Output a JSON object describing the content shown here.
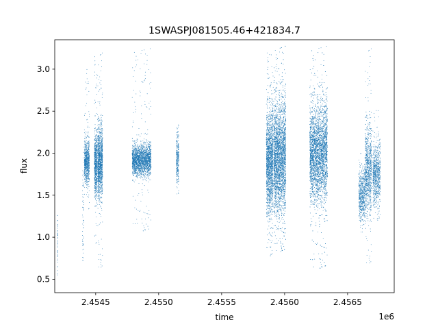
{
  "chart_data": {
    "type": "scatter",
    "title": "1SWASPJ081505.46+421834.7",
    "xlabel": "time",
    "ylabel": "flux",
    "x_offset_label": "1e6",
    "xlim": [
      2454175,
      2456870
    ],
    "ylim": [
      0.34,
      3.35
    ],
    "x_ticks": [
      2454500,
      2455000,
      2455500,
      2456000,
      2456500
    ],
    "x_tick_labels": [
      "2.4545",
      "2.4550",
      "2.4555",
      "2.4560",
      "2.4565"
    ],
    "y_ticks": [
      0.5,
      1.0,
      1.5,
      2.0,
      2.5,
      3.0
    ],
    "y_tick_labels": [
      "0.5",
      "1.0",
      "1.5",
      "2.0",
      "2.5",
      "3.0"
    ],
    "grid": false,
    "legend": "none",
    "point_color": "#1f77b4",
    "clusters": [
      {
        "x_start": 2454195,
        "x_end": 2454200,
        "y_center": 0.95,
        "y_spread": 0.22,
        "y_min": 0.55,
        "y_max": 1.28,
        "points": 40
      },
      {
        "x_start": 2454395,
        "x_end": 2454405,
        "y_center": 1.3,
        "y_spread": 0.35,
        "y_min": 0.7,
        "y_max": 2.1,
        "points": 60
      },
      {
        "x_start": 2454410,
        "x_end": 2454450,
        "y_center": 1.9,
        "y_spread": 0.12,
        "y_min": 1.3,
        "y_max": 3.0,
        "points": 800
      },
      {
        "x_start": 2454490,
        "x_end": 2454510,
        "y_center": 1.85,
        "y_spread": 0.18,
        "y_min": 0.9,
        "y_max": 3.2,
        "points": 700
      },
      {
        "x_start": 2454515,
        "x_end": 2454555,
        "y_center": 1.9,
        "y_spread": 0.2,
        "y_min": 0.6,
        "y_max": 3.2,
        "points": 1300
      },
      {
        "x_start": 2454790,
        "x_end": 2454940,
        "y_center": 1.92,
        "y_spread": 0.09,
        "y_min": 1.05,
        "y_max": 3.25,
        "points": 2200
      },
      {
        "x_start": 2455140,
        "x_end": 2455160,
        "y_center": 1.92,
        "y_spread": 0.15,
        "y_min": 1.5,
        "y_max": 2.4,
        "points": 300
      },
      {
        "x_start": 2455855,
        "x_end": 2455910,
        "y_center": 1.9,
        "y_spread": 0.3,
        "y_min": 0.75,
        "y_max": 3.25,
        "points": 1800
      },
      {
        "x_start": 2455915,
        "x_end": 2456010,
        "y_center": 1.95,
        "y_spread": 0.32,
        "y_min": 0.8,
        "y_max": 3.28,
        "points": 3200
      },
      {
        "x_start": 2456200,
        "x_end": 2456340,
        "y_center": 2.0,
        "y_spread": 0.28,
        "y_min": 0.6,
        "y_max": 3.28,
        "points": 4200
      },
      {
        "x_start": 2456590,
        "x_end": 2456640,
        "y_center": 1.5,
        "y_spread": 0.15,
        "y_min": 1.05,
        "y_max": 2.0,
        "points": 600
      },
      {
        "x_start": 2456640,
        "x_end": 2456690,
        "y_center": 1.8,
        "y_spread": 0.25,
        "y_min": 0.65,
        "y_max": 3.25,
        "points": 900
      },
      {
        "x_start": 2456700,
        "x_end": 2456760,
        "y_center": 1.75,
        "y_spread": 0.18,
        "y_min": 1.2,
        "y_max": 2.55,
        "points": 800
      }
    ]
  }
}
